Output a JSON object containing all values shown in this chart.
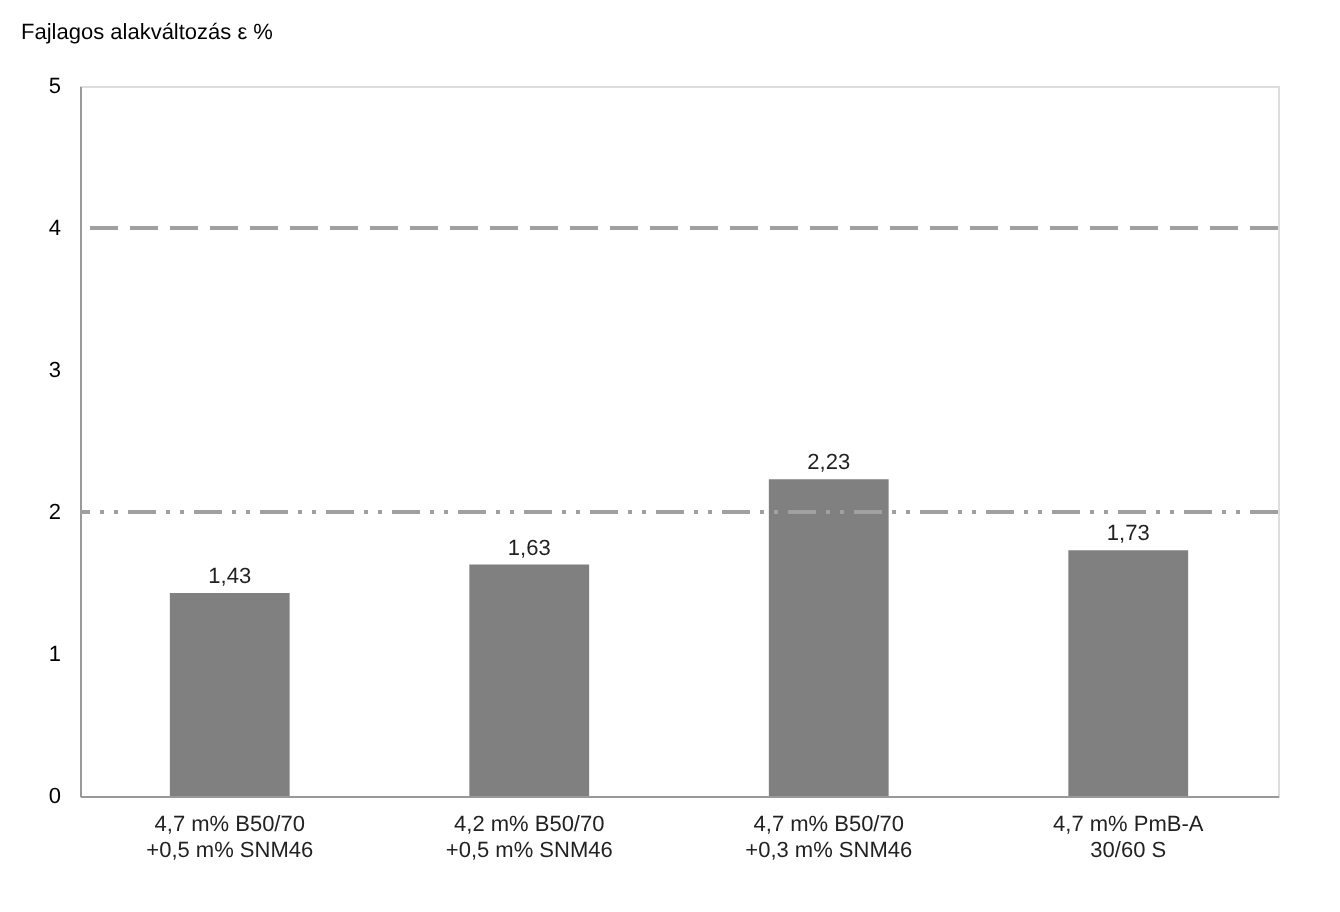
{
  "chart_data": {
    "type": "bar",
    "ylabel": "Fajlagos alakváltozás ε %",
    "categories": [
      "4,7 m% B50/70\n+0,5 m% SNM46",
      "4,2 m% B50/70\n+0,5 m% SNM46",
      "4,7 m% B50/70\n+0,3 m% SNM46",
      "4,7 m% PmB-A\n30/60 S"
    ],
    "values": [
      1.43,
      1.63,
      2.23,
      1.73
    ],
    "value_labels": [
      "1,43",
      "1,63",
      "2,23",
      "1,73"
    ],
    "color": "#808080",
    "ylim": [
      0,
      5
    ],
    "yticks": [
      0,
      1,
      2,
      3,
      4,
      5
    ],
    "grid": false,
    "ref_lines": [
      {
        "axis": "y",
        "value": 4,
        "color": "#a0a0a0",
        "line_style": "dashed"
      },
      {
        "axis": "y",
        "value": 2,
        "color": "#a0a0a0",
        "line_style": "dotted"
      }
    ]
  }
}
